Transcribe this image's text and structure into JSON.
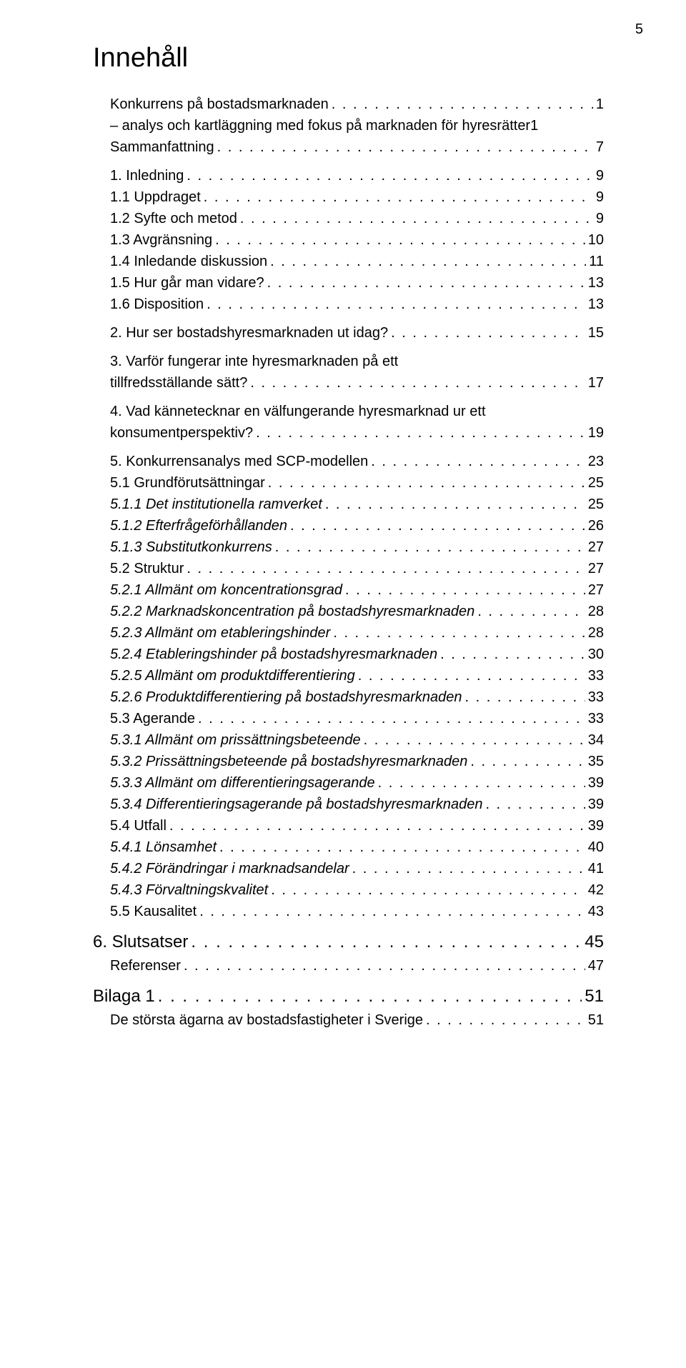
{
  "page_number": "5",
  "heading": "Innehåll",
  "entries": [
    {
      "label": "Konkurrens på bostadsmarknaden",
      "page": "1",
      "level": 1,
      "top": false
    },
    {
      "label": "– analys och kartläggning med fokus på marknaden för hyresrätter1",
      "level": 1,
      "noDots": true,
      "top": false
    },
    {
      "label": "Sammanfattning",
      "page": "7",
      "level": 1,
      "top": false
    },
    {
      "label": "1. Inledning",
      "page": "9",
      "level": 1,
      "top": true
    },
    {
      "label": "1.1 Uppdraget",
      "page": "9",
      "level": 1,
      "top": false
    },
    {
      "label": "1.2 Syfte och metod",
      "page": "9",
      "level": 1,
      "top": false
    },
    {
      "label": "1.3 Avgränsning",
      "page": "10",
      "level": 1,
      "top": false
    },
    {
      "label": "1.4 Inledande diskussion",
      "page": "11",
      "level": 1,
      "top": false
    },
    {
      "label": "1.5 Hur går man vidare?",
      "page": "13",
      "level": 1,
      "top": false
    },
    {
      "label": "1.6 Disposition",
      "page": "13",
      "level": 1,
      "top": false
    },
    {
      "label": "2. Hur ser bostadshyresmarknaden ut idag?",
      "page": "15",
      "level": 1,
      "top": true
    },
    {
      "label": "3. Varför fungerar inte hyresmarknaden på ett tillfredsställande sätt?",
      "page": "17",
      "level": 1,
      "top": true,
      "wrap": true
    },
    {
      "label": "4. Vad kännetecknar en välfungerande hyresmarknad ur ett konsumentperspektiv?",
      "page": "19",
      "level": 1,
      "top": true,
      "wrap": true
    },
    {
      "label": "5. Konkurrensanalys med SCP-modellen",
      "page": "23",
      "level": 1,
      "top": true
    },
    {
      "label": "5.1 Grundförutsättningar",
      "page": "25",
      "level": 1,
      "top": false
    },
    {
      "label": "5.1.1 Det institutionella ramverket",
      "page": "25",
      "level": 2,
      "top": false
    },
    {
      "label": "5.1.2 Efterfrågeförhållanden",
      "page": "26",
      "level": 2,
      "top": false
    },
    {
      "label": "5.1.3 Substitutkonkurrens",
      "page": "27",
      "level": 2,
      "top": false
    },
    {
      "label": "5.2 Struktur",
      "page": "27",
      "level": 1,
      "top": false
    },
    {
      "label": "5.2.1 Allmänt om koncentrationsgrad",
      "page": "27",
      "level": 2,
      "top": false
    },
    {
      "label": "5.2.2 Marknadskoncentration på bostadshyresmarknaden",
      "page": "28",
      "level": 2,
      "top": false
    },
    {
      "label": "5.2.3 Allmänt om etableringshinder",
      "page": "28",
      "level": 2,
      "top": false
    },
    {
      "label": "5.2.4 Etableringshinder på bostadshyresmarknaden",
      "page": "30",
      "level": 2,
      "top": false
    },
    {
      "label": "5.2.5 Allmänt om produktdifferentiering",
      "page": "33",
      "level": 2,
      "top": false
    },
    {
      "label": "5.2.6 Produktdifferentiering på bostadshyresmarknaden",
      "page": "33",
      "level": 2,
      "top": false
    },
    {
      "label": "5.3 Agerande",
      "page": "33",
      "level": 1,
      "top": false
    },
    {
      "label": "5.3.1 Allmänt om prissättningsbeteende",
      "page": "34",
      "level": 2,
      "top": false
    },
    {
      "label": "5.3.2 Prissättningsbeteende på bostadshyresmarknaden",
      "page": "35",
      "level": 2,
      "top": false
    },
    {
      "label": "5.3.3 Allmänt om differentieringsagerande",
      "page": "39",
      "level": 2,
      "top": false
    },
    {
      "label": "5.3.4 Differentieringsagerande på bostadshyresmarknaden",
      "page": "39",
      "level": 2,
      "top": false
    },
    {
      "label": "5.4 Utfall",
      "page": "39",
      "level": 1,
      "top": false
    },
    {
      "label": "5.4.1 Lönsamhet",
      "page": "40",
      "level": 2,
      "top": false
    },
    {
      "label": "5.4.2 Förändringar i marknadsandelar",
      "page": "41",
      "level": 2,
      "top": false
    },
    {
      "label": "5.4.3 Förvaltningskvalitet",
      "page": "42",
      "level": 2,
      "top": false
    },
    {
      "label": "5.5 Kausalitet",
      "page": "43",
      "level": 1,
      "top": false
    },
    {
      "label": "6. Slutsatser",
      "page": "45",
      "level": 0,
      "top": true
    },
    {
      "label": "Referenser",
      "page": "47",
      "level": 1,
      "top": false
    },
    {
      "label": "Bilaga 1",
      "page": "51",
      "level": 0,
      "top": true
    },
    {
      "label": "De största ägarna av bostadsfastigheter i Sverige",
      "page": "51",
      "level": 1,
      "top": false
    }
  ],
  "dot_fill": ". . . . . . . . . . . . . . . . . . . . . . . . . . . . . . . . . . . . . . . . . . . . . . . . . . . . . . . . . . . . . . . . . . . . . . . . . . . . . . . . . . . . . . . ."
}
